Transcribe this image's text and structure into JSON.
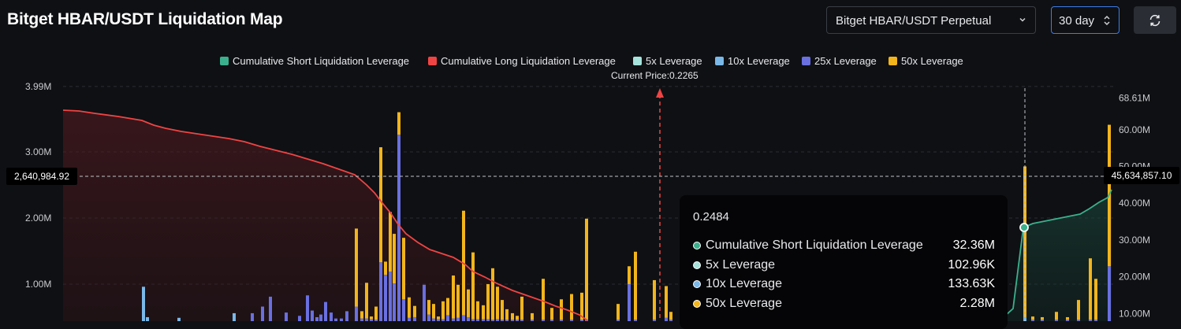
{
  "header": {
    "title": "Bitget HBAR/USDT Liquidation Map"
  },
  "controls": {
    "pair_select": "Bitget HBAR/USDT Perpetual",
    "period_select": "30 day",
    "refresh_icon": "refresh-icon"
  },
  "legend": [
    {
      "label": "Cumulative Short Liquidation Leverage",
      "color": "#3bb08c"
    },
    {
      "label": "Cumulative Long Liquidation Leverage",
      "color": "#ef4444"
    },
    {
      "label": "5x Leverage",
      "color": "#a6e3dd"
    },
    {
      "label": "10x Leverage",
      "color": "#7ab8e8"
    },
    {
      "label": "25x Leverage",
      "color": "#6a70e0"
    },
    {
      "label": "50x Leverage",
      "color": "#f2b51b"
    }
  ],
  "current_price_label": "Current Price:0.2265",
  "crosshair": {
    "left_value": "2,640,984.92",
    "right_value": "45,634,857.10"
  },
  "tooltip": {
    "price": "0.2484",
    "rows": [
      {
        "name": "Cumulative Short Liquidation Leverage",
        "value": "32.36M",
        "color": "#3bb08c"
      },
      {
        "name": "5x Leverage",
        "value": "102.96K",
        "color": "#a6e3dd"
      },
      {
        "name": "10x Leverage",
        "value": "133.63K",
        "color": "#7ab8e8"
      },
      {
        "name": "50x Leverage",
        "value": "2.28M",
        "color": "#f2b51b"
      }
    ]
  },
  "chart_data": {
    "type": "bar",
    "title": "Bitget HBAR/USDT Liquidation Map",
    "current_price": 0.2265,
    "left_axis": {
      "ticks": [
        "3.99M",
        "3.00M",
        "2.00M",
        "1.00M"
      ],
      "values": [
        3.99,
        3.0,
        2.0,
        1.0
      ],
      "unit": "M"
    },
    "right_axis": {
      "ticks": [
        "68.61M",
        "60.00M",
        "50.00M",
        "40.00M",
        "30.00M",
        "20.00M",
        "10.00M"
      ],
      "values": [
        68.61,
        60,
        50,
        40,
        30,
        20,
        10
      ],
      "unit": "M"
    },
    "grid": true,
    "legend_position": "top-center",
    "bars": [
      {
        "x": 80,
        "y25": 0,
        "y50": 0,
        "y10": 0
      },
      {
        "x": 100,
        "y25": 0,
        "y50": 0,
        "y10": 0
      },
      {
        "x": 182,
        "y10": 0.52,
        "y25": 0,
        "y50": 0
      },
      {
        "x": 187,
        "y10": 0.06,
        "y25": 0,
        "y50": 0
      },
      {
        "x": 227,
        "y10": 0.05,
        "y25": 0,
        "y50": 0
      },
      {
        "x": 297,
        "y10": 0.12,
        "y25": 0,
        "y50": 0
      },
      {
        "x": 320,
        "y25": 0.12,
        "y50": 0,
        "y10": 0
      },
      {
        "x": 333,
        "y25": 0.22,
        "y50": 0,
        "y10": 0
      },
      {
        "x": 343,
        "y25": 0.37,
        "y50": 0,
        "y10": 0
      },
      {
        "x": 363,
        "y25": 0.13,
        "y50": 0,
        "y10": 0
      },
      {
        "x": 380,
        "y25": 0.08,
        "y50": 0,
        "y10": 0
      },
      {
        "x": 390,
        "y25": 0.39,
        "y50": 0,
        "y10": 0
      },
      {
        "x": 396,
        "y25": 0.16,
        "y50": 0,
        "y10": 0
      },
      {
        "x": 402,
        "y25": 0.06,
        "y50": 0,
        "y10": 0
      },
      {
        "x": 407,
        "y25": 0.1,
        "y50": 0,
        "y10": 0
      },
      {
        "x": 413,
        "y25": 0.29,
        "y50": 0,
        "y10": 0
      },
      {
        "x": 420,
        "y25": 0.13,
        "y50": 0,
        "y10": 0
      },
      {
        "x": 426,
        "y25": 0.04,
        "y50": 0,
        "y10": 0
      },
      {
        "x": 433,
        "y25": 0.04,
        "y50": 0,
        "y10": 0
      },
      {
        "x": 440,
        "y25": 0.15,
        "y50": 0,
        "y10": 0
      },
      {
        "x": 452,
        "y25": 0.22,
        "y50": 1.18,
        "y10": 0
      },
      {
        "x": 459,
        "y25": 0.04,
        "y50": 0.11,
        "y10": 0
      },
      {
        "x": 465,
        "y25": 0.04,
        "y50": 0.54,
        "y10": 0
      },
      {
        "x": 471,
        "y25": 0.03,
        "y50": 0.04,
        "y10": 0
      },
      {
        "x": 477,
        "y25": 0.02,
        "y50": 0.2,
        "y10": 0
      },
      {
        "x": 483,
        "y25": 0.89,
        "y50": 1.74,
        "y10": 0
      },
      {
        "x": 489,
        "y25": 0.7,
        "y50": 0.2,
        "y10": 0
      },
      {
        "x": 495,
        "y25": 0.75,
        "y50": 0.9,
        "y10": 0
      },
      {
        "x": 500,
        "y25": 0.57,
        "y50": 0.75,
        "y10": 0
      },
      {
        "x": 506,
        "y25": 2.82,
        "y50": 0.34,
        "y10": 0
      },
      {
        "x": 512,
        "y25": 0.33,
        "y50": 0.93,
        "y10": 0
      },
      {
        "x": 519,
        "y25": 0.05,
        "y50": 0.31,
        "y10": 0
      },
      {
        "x": 526,
        "y25": 0.06,
        "y50": 0.17,
        "y10": 0
      },
      {
        "x": 538,
        "y25": 0.55,
        "y50": 0,
        "y10": 0
      },
      {
        "x": 544,
        "y25": 0.1,
        "y50": 0.22,
        "y10": 0
      },
      {
        "x": 550,
        "y25": 0.04,
        "y50": 0.22,
        "y10": 0
      },
      {
        "x": 556,
        "y25": 0.03,
        "y50": 0.04,
        "y10": 0
      },
      {
        "x": 562,
        "y25": 0.03,
        "y50": 0.27,
        "y10": 0
      },
      {
        "x": 568,
        "y25": 0.09,
        "y50": 0.26,
        "y10": 0
      },
      {
        "x": 575,
        "y25": 0.04,
        "y50": 0.65,
        "y10": 0
      },
      {
        "x": 581,
        "y25": 0.05,
        "y50": 0.5,
        "y10": 0
      },
      {
        "x": 588,
        "y25": 0.09,
        "y50": 1.58,
        "y10": 0
      },
      {
        "x": 594,
        "y25": 0.06,
        "y50": 0.42,
        "y10": 0
      },
      {
        "x": 600,
        "y25": 0.03,
        "y50": 1.01,
        "y10": 0
      },
      {
        "x": 606,
        "y25": 0.03,
        "y50": 0.27,
        "y10": 0
      },
      {
        "x": 613,
        "y25": 0.03,
        "y50": 0.21,
        "y10": 0
      },
      {
        "x": 619,
        "y25": 0.03,
        "y50": 0.53,
        "y10": 0
      },
      {
        "x": 625,
        "y25": 0.02,
        "y50": 0.78,
        "y10": 0
      },
      {
        "x": 631,
        "y25": 0.03,
        "y50": 0.49,
        "y10": 0
      },
      {
        "x": 637,
        "y25": 0.02,
        "y50": 0.3,
        "y10": 0
      },
      {
        "x": 643,
        "y25": 0.02,
        "y50": 0.16,
        "y10": 0
      },
      {
        "x": 650,
        "y25": 0.02,
        "y50": 0.1,
        "y10": 0
      },
      {
        "x": 656,
        "y25": 0.02,
        "y50": 0.06,
        "y10": 0
      },
      {
        "x": 662,
        "y25": 0.02,
        "y50": 0.35,
        "y10": 0
      },
      {
        "x": 675,
        "y25": 0.02,
        "y50": 0.1,
        "y10": 0
      },
      {
        "x": 689,
        "y25": 0.02,
        "y50": 0.62,
        "y10": 0
      },
      {
        "x": 700,
        "y25": 0.02,
        "y50": 0.18,
        "y10": 0
      },
      {
        "x": 712,
        "y25": 0.02,
        "y50": 0.31,
        "y10": 0
      },
      {
        "x": 725,
        "y25": 0.02,
        "y50": 0.39,
        "y10": 0
      },
      {
        "x": 738,
        "y25": 0.02,
        "y50": 0.41,
        "y10": 0
      },
      {
        "x": 744,
        "y25": 0.02,
        "y50": 1.53,
        "y10": 0
      },
      {
        "x": 784,
        "y25": 0.02,
        "y50": 0.24,
        "y10": 0
      },
      {
        "x": 798,
        "y25": 0.56,
        "y50": 0.27,
        "y10": 0
      },
      {
        "x": 806,
        "y25": 0.02,
        "y50": 1.03,
        "y10": 0
      },
      {
        "x": 830,
        "y25": 0.02,
        "y50": 0.6,
        "y10": 0
      },
      {
        "x": 845,
        "y25": 0.05,
        "y50": 0.48,
        "y10": 0
      },
      {
        "x": 851,
        "y25": 0.02,
        "y50": 0.12,
        "y10": 0
      },
      {
        "x": 1300,
        "y10": 0.06,
        "y25": 0,
        "y50": 2.28
      },
      {
        "x": 1310,
        "y25": 0.02,
        "y50": 0.05,
        "y10": 0
      },
      {
        "x": 1322,
        "y25": 0.02,
        "y50": 0.04,
        "y10": 0
      },
      {
        "x": 1340,
        "y25": 0.02,
        "y50": 0.12,
        "y10": 0
      },
      {
        "x": 1354,
        "y25": 0.02,
        "y50": 0.04,
        "y10": 0
      },
      {
        "x": 1368,
        "y25": 0.02,
        "y50": 0.3,
        "y10": 0
      },
      {
        "x": 1383,
        "y25": 0.02,
        "y50": 0.93,
        "y10": 0
      },
      {
        "x": 1390,
        "y25": 0.02,
        "y50": 0.62,
        "y10": 0
      },
      {
        "x": 1407,
        "y25": 0.83,
        "y50": 2.14,
        "y10": 0
      }
    ],
    "long_cumulative_line": [
      [
        80,
        140
      ],
      [
        100,
        141
      ],
      [
        120,
        144
      ],
      [
        150,
        148
      ],
      [
        180,
        153
      ],
      [
        195,
        159
      ],
      [
        210,
        163
      ],
      [
        230,
        167
      ],
      [
        250,
        170
      ],
      [
        270,
        173
      ],
      [
        290,
        176
      ],
      [
        310,
        180
      ],
      [
        330,
        186
      ],
      [
        350,
        191
      ],
      [
        370,
        196
      ],
      [
        390,
        202
      ],
      [
        410,
        208
      ],
      [
        430,
        215
      ],
      [
        450,
        222
      ],
      [
        465,
        235
      ],
      [
        475,
        245
      ],
      [
        485,
        258
      ],
      [
        495,
        270
      ],
      [
        505,
        285
      ],
      [
        515,
        297
      ],
      [
        530,
        308
      ],
      [
        545,
        317
      ],
      [
        560,
        322
      ],
      [
        575,
        327
      ],
      [
        590,
        336
      ],
      [
        600,
        345
      ],
      [
        615,
        352
      ],
      [
        630,
        360
      ],
      [
        650,
        369
      ],
      [
        670,
        376
      ],
      [
        690,
        383
      ],
      [
        705,
        389
      ],
      [
        720,
        394
      ],
      [
        735,
        400
      ],
      [
        745,
        407
      ]
    ],
    "short_cumulative_line": [
      [
        1265,
        408
      ],
      [
        1275,
        401
      ],
      [
        1285,
        392
      ],
      [
        1298,
        289
      ],
      [
        1310,
        284
      ],
      [
        1325,
        281
      ],
      [
        1340,
        278
      ],
      [
        1355,
        275
      ],
      [
        1370,
        272
      ],
      [
        1382,
        265
      ],
      [
        1394,
        257
      ],
      [
        1405,
        251
      ],
      [
        1410,
        241
      ]
    ]
  }
}
